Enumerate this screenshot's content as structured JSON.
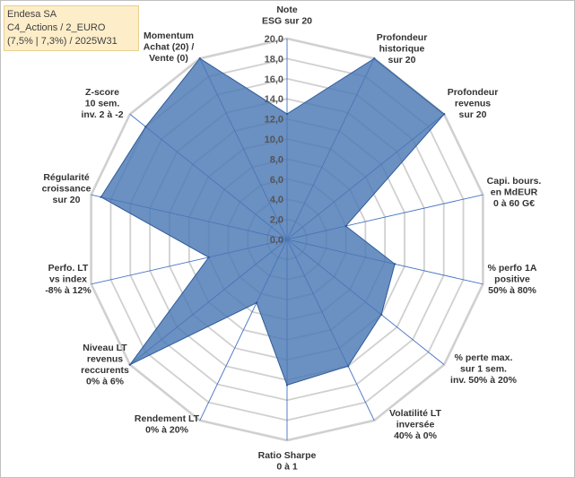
{
  "info_box": {
    "line1": "Endesa SA",
    "line2": "C4_Actions / 2_EURO",
    "line3": "(7,5% | 7,3%) / 2025W31"
  },
  "colors": {
    "fill": "#4a77b4",
    "stroke": "#2e5b9a",
    "grid": "#d0d0d0",
    "spoke": "#4472c4"
  },
  "chart_data": {
    "type": "radar",
    "title": "",
    "axis_range": [
      0,
      20
    ],
    "tick_step": 2,
    "tick_labels": [
      "0,0",
      "2,0",
      "4,0",
      "6,0",
      "8,0",
      "10,0",
      "12,0",
      "14,0",
      "16,0",
      "18,0",
      "20,0"
    ],
    "grid": true,
    "categories": [
      [
        "Note",
        "ESG sur 20"
      ],
      [
        "Profondeur",
        "historique",
        "sur 20"
      ],
      [
        "Profondeur",
        "revenus",
        "sur 20"
      ],
      [
        "Capi. bours.",
        "en MdEUR",
        "0 à 60 G€"
      ],
      [
        "% perfo 1A",
        "positive",
        "50% à 80%"
      ],
      [
        "% perte max.",
        "sur 1 sem.",
        "inv. 50% à 20%"
      ],
      [
        "Volatilité LT",
        "inversée",
        "40% à 0%"
      ],
      [
        "Ratio Sharpe",
        "0 à 1"
      ],
      [
        "Rendement LT",
        "0% à 20%"
      ],
      [
        "Niveau LT",
        "revenus",
        "reccurents",
        "0% à 6%"
      ],
      [
        "Perfo. LT",
        "vs index",
        "-8% à 12%"
      ],
      [
        "Régularité",
        "croissance",
        "sur 20"
      ],
      [
        "Z-score",
        "10 sem.",
        "inv. 2 à -2"
      ],
      [
        "Momentum",
        "Achat (20) /",
        "Vente (0)"
      ]
    ],
    "series": [
      {
        "values": [
          12.5,
          20,
          20,
          6,
          11,
          12,
          14,
          14.5,
          7,
          20,
          8,
          19,
          18,
          20
        ]
      }
    ]
  }
}
